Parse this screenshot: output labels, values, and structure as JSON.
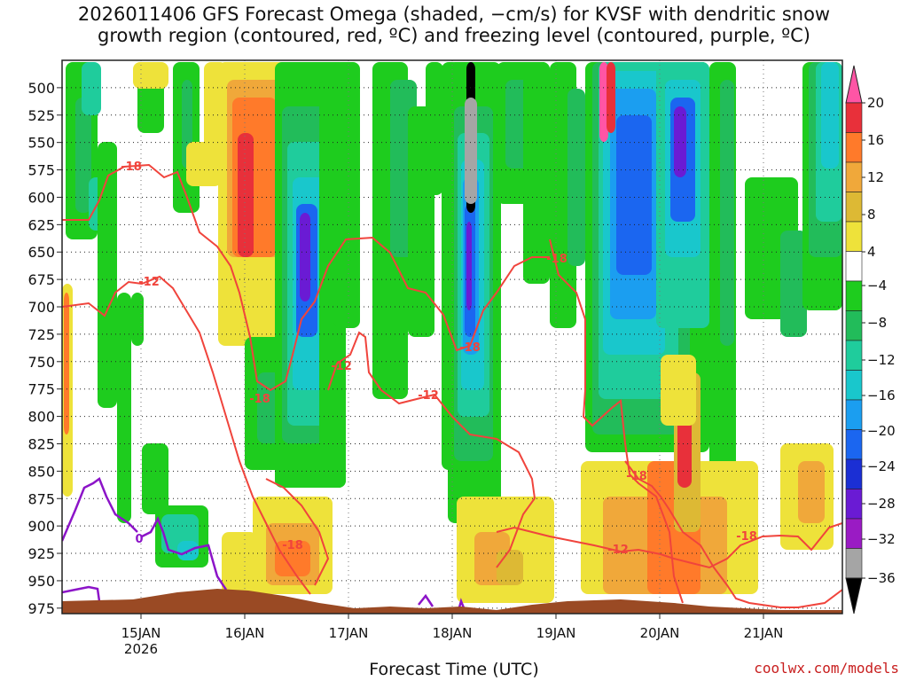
{
  "chart_data": {
    "type": "heatmap",
    "title_lines": [
      "2026011406 GFS Forecast Omega (shaded, −cm/s) for KVSF with dendritic snow",
      "growth region (contoured, red, ºC) and freezing level (contoured, purple, ºC)"
    ],
    "xlabel": "Forecast Time (UTC)",
    "x_ticks": [
      "15JAN",
      "16JAN",
      "17JAN",
      "18JAN",
      "19JAN",
      "20JAN",
      "21JAN"
    ],
    "x_subtick": "2026",
    "y_ticks": [
      500,
      525,
      550,
      575,
      600,
      625,
      650,
      675,
      700,
      725,
      750,
      775,
      800,
      825,
      850,
      875,
      900,
      925,
      950,
      975
    ],
    "ylim": [
      475,
      980
    ],
    "colorbar": {
      "ticks": [
        20,
        16,
        12,
        8,
        4,
        -4,
        -8,
        -12,
        -16,
        -20,
        -24,
        -28,
        -32,
        -36
      ],
      "colors": [
        "#ff55a5",
        "#e8303a",
        "#ff7a2a",
        "#f0a83a",
        "#ddb934",
        "#eee23a",
        "#ffffff",
        "#1ecc1e",
        "#22bc5a",
        "#1fcc9c",
        "#19c7cc",
        "#1b9ef0",
        "#1b66f0",
        "#1b2fd4",
        "#6a1bd4",
        "#9a1bc4",
        "#a5a5a5",
        "#000000"
      ]
    },
    "contour_labels": {
      "red": [
        "-18",
        "-12",
        "-18",
        "-12",
        "-18",
        "-12",
        "-18",
        "-18",
        "-18",
        "-12",
        "-18"
      ],
      "purple": [
        "0"
      ]
    },
    "colors": {
      "dgz": "#f0443c",
      "freezing": "#8c14c8",
      "terrain": "#9a4a24"
    }
  },
  "credit": "coolwx.com/models"
}
